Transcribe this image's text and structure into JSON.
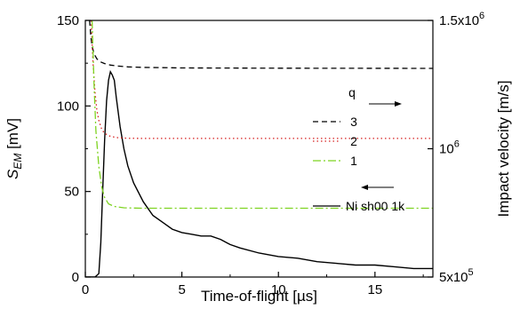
{
  "chart_data": {
    "type": "line",
    "xlabel": "Time-of-flight [µs]",
    "ylabel": {
      "main": "S",
      "sub": "EM",
      "unit": " [mV]"
    },
    "y2label": "Impact velocity [m/s]",
    "xlim": [
      0,
      18
    ],
    "ylim": [
      0,
      150
    ],
    "y2lim": [
      500000,
      1500000
    ],
    "x_ticks": [
      0,
      5,
      10,
      15
    ],
    "y_ticks": [
      0,
      50,
      100,
      150
    ],
    "y2_ticks": [
      {
        "value": 500000,
        "base": "5x10",
        "exp": "5"
      },
      {
        "value": 1000000,
        "base": "10",
        "exp": "6"
      },
      {
        "value": 1500000,
        "base": "1.5x10",
        "exp": "6"
      }
    ],
    "legend": {
      "q_title": "q",
      "entries": [
        {
          "label": "3",
          "color": "#000000",
          "dash": "6,4"
        },
        {
          "label": "2",
          "color": "#d62020",
          "dash": "1.5,3"
        },
        {
          "label": "1",
          "color": "#7ed321",
          "dash": "9,3,2,3"
        },
        {
          "label": "Ni sh00 1k",
          "color": "#000000",
          "dash": ""
        }
      ]
    },
    "series": [
      {
        "label": "Ni sh00 1k",
        "axis": "left",
        "color": "#000000",
        "x": [
          0,
          0.5,
          0.7,
          0.8,
          0.9,
          1.0,
          1.1,
          1.2,
          1.3,
          1.4,
          1.5,
          1.6,
          1.8,
          2.0,
          2.2,
          2.5,
          3.0,
          3.5,
          4.0,
          4.5,
          5.0,
          5.5,
          6.0,
          6.5,
          7.0,
          7.5,
          8.0,
          9.0,
          10.0,
          11.0,
          12.0,
          13.0,
          14.0,
          15.0,
          16.0,
          17.0,
          18.0
        ],
        "y": [
          0,
          0,
          2,
          20,
          50,
          80,
          103,
          115,
          120,
          118,
          115,
          105,
          88,
          75,
          65,
          55,
          44,
          36,
          32,
          28,
          26,
          25,
          24,
          24,
          22,
          19,
          17,
          14,
          12,
          11,
          9,
          8,
          7,
          7,
          6,
          5,
          5
        ]
      },
      {
        "label": "3",
        "axis": "right",
        "color": "#000000",
        "x": [
          0.22,
          0.28,
          0.35,
          0.45,
          0.6,
          0.8,
          1.0,
          1.3,
          1.7,
          2.2,
          3.0,
          5.0,
          10.0,
          18.0
        ],
        "y": [
          1500000,
          1440000,
          1400000,
          1370000,
          1350000,
          1338000,
          1332000,
          1326000,
          1322000,
          1319000,
          1317000,
          1315000,
          1314000,
          1313000
        ]
      },
      {
        "label": "2",
        "axis": "right",
        "color": "#d62020",
        "x": [
          0.3,
          0.4,
          0.5,
          0.6,
          0.7,
          0.85,
          1.0,
          1.3,
          1.7,
          2.2,
          3.0,
          5.0,
          10.0,
          18.0
        ],
        "y": [
          1500000,
          1330000,
          1220000,
          1150000,
          1110000,
          1075000,
          1060000,
          1048000,
          1043000,
          1041000,
          1040000,
          1040000,
          1040000,
          1040000
        ]
      },
      {
        "label": "1",
        "axis": "right",
        "color": "#7ed321",
        "x": [
          0.35,
          0.45,
          0.55,
          0.7,
          0.85,
          1.0,
          1.2,
          1.5,
          2.0,
          2.5,
          3.0,
          5.0,
          10.0,
          18.0
        ],
        "y": [
          1500000,
          1250000,
          1070000,
          930000,
          850000,
          810000,
          785000,
          775000,
          770000,
          769000,
          768000,
          768000,
          768000,
          768000
        ]
      }
    ]
  }
}
